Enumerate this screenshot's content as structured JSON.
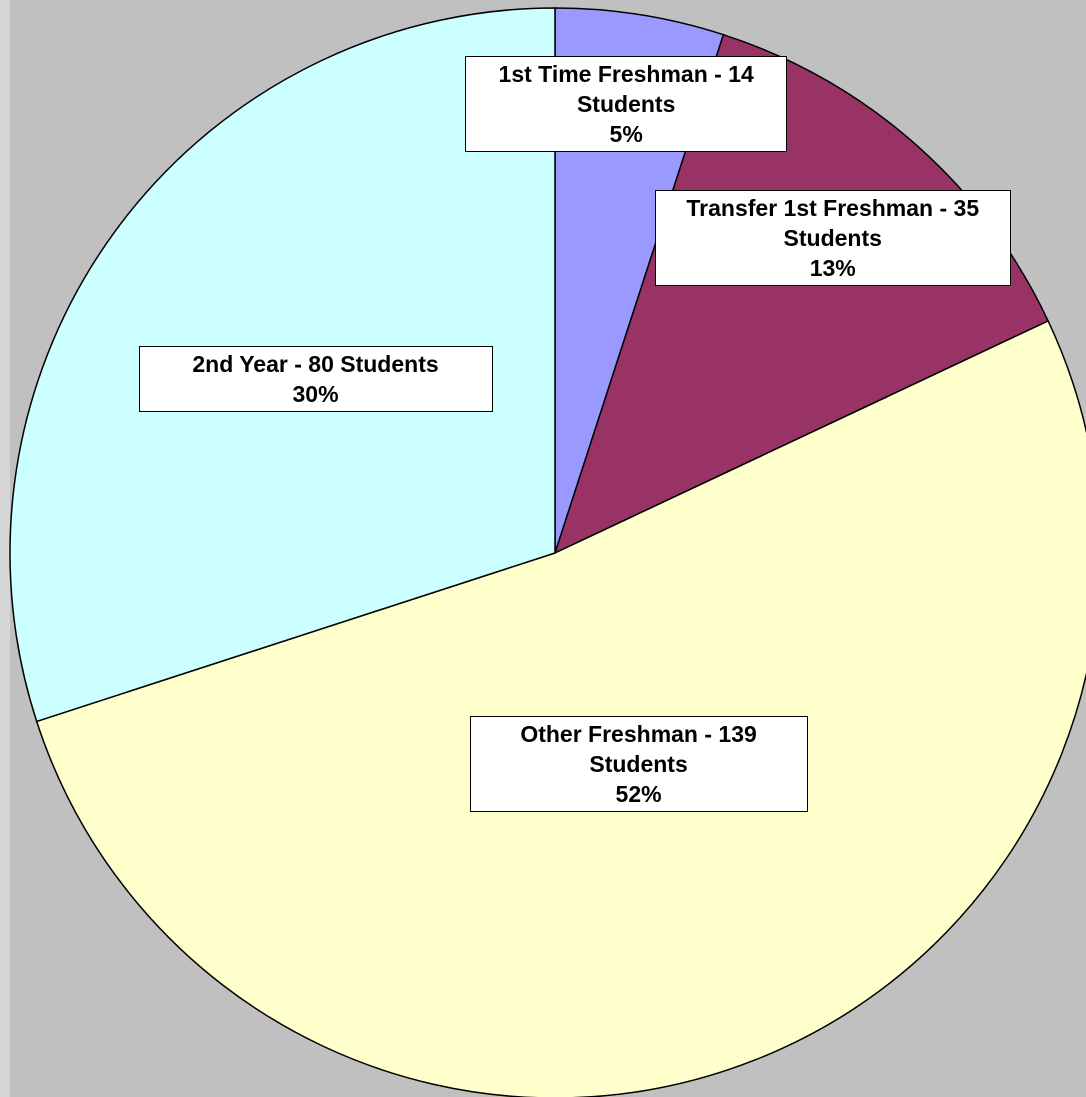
{
  "chart_data": {
    "type": "pie",
    "categories": [
      "1st Time Freshman - 14 Students",
      "Transfer 1st Freshman - 35 Students",
      "Other Freshman - 139 Students",
      "2nd Year - 80 Students"
    ],
    "values": [
      5,
      13,
      52,
      30
    ],
    "value_labels": [
      "5%",
      "13%",
      "52%",
      "30%"
    ],
    "colors": [
      "#9999ff",
      "#993366",
      "#ffffcc",
      "#ccffff"
    ]
  }
}
